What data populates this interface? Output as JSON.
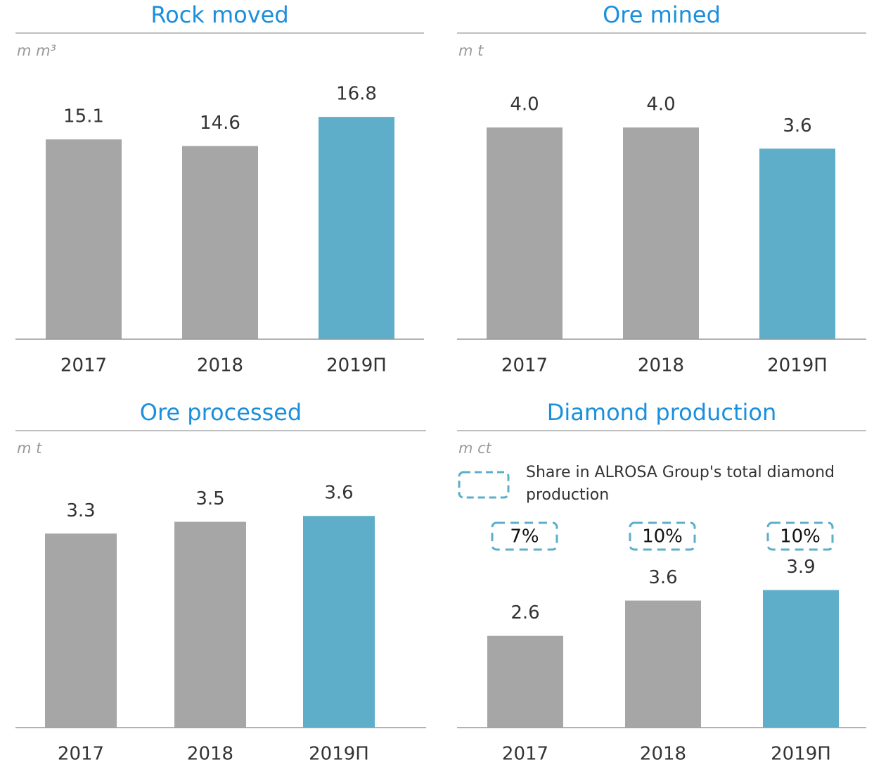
{
  "chart_data": [
    {
      "type": "bar",
      "title": "Rock moved",
      "unit": "m m³",
      "categories": [
        "2017",
        "2018",
        "2019П"
      ],
      "values": [
        15.1,
        14.6,
        16.8
      ],
      "colors": [
        "#a6a6a6",
        "#a6a6a6",
        "#5eaec9"
      ],
      "ylim": [
        0,
        20
      ]
    },
    {
      "type": "bar",
      "title": "Ore mined",
      "unit": "m t",
      "categories": [
        "2017",
        "2018",
        "2019П"
      ],
      "values": [
        4.0,
        4.0,
        3.6
      ],
      "value_labels": [
        "4.0",
        "4.0",
        "3.6"
      ],
      "colors": [
        "#a6a6a6",
        "#a6a6a6",
        "#5eaec9"
      ],
      "ylim": [
        0,
        5
      ]
    },
    {
      "type": "bar",
      "title": "Ore processed",
      "unit": "m t",
      "categories": [
        "2017",
        "2018",
        "2019П"
      ],
      "values": [
        3.3,
        3.5,
        3.6
      ],
      "colors": [
        "#a6a6a6",
        "#a6a6a6",
        "#5eaec9"
      ],
      "ylim": [
        0,
        4.5
      ]
    },
    {
      "type": "bar",
      "title": "Diamond production",
      "unit": "m ct",
      "categories": [
        "2017",
        "2018",
        "2019П"
      ],
      "values": [
        2.6,
        3.6,
        3.9
      ],
      "colors": [
        "#a6a6a6",
        "#a6a6a6",
        "#5eaec9"
      ],
      "ylim": [
        0,
        7.5
      ],
      "shares": {
        "name": "Share in ALROSA Group's total diamond production",
        "values": [
          7,
          10,
          10
        ],
        "value_labels": [
          "7%",
          "10%",
          "10%"
        ],
        "color": "#5eaec9"
      }
    }
  ]
}
